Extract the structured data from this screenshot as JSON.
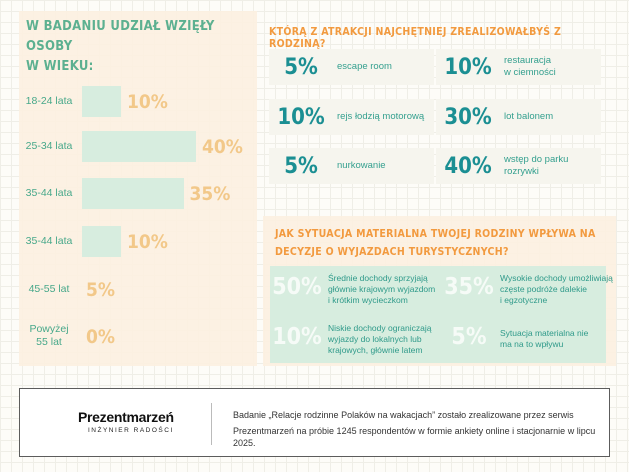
{
  "colors": {
    "accent_green": "#5cb090",
    "accent_orange": "#f29a3f",
    "pct_yellow": "#f2c889",
    "teal": "#1b8f93",
    "bar_green": "#d7eddf",
    "panel_peach": "#fcefe0"
  },
  "left": {
    "title_line1": "W BADANIU UDZIAŁ WZIĘŁY OSOBY",
    "title_line2": "W WIEKU:"
  },
  "chart_data": [
    {
      "type": "bar",
      "title": "W BADANIU UDZIAŁ WZIĘŁY OSOBY W WIEKU:",
      "categories": [
        "18-24 lata",
        "25-34 lata",
        "35-44 lata",
        "35-44 lata",
        "45-55 lat",
        "Powyżej 55 lat"
      ],
      "category_lines": [
        [
          "18-24 lata"
        ],
        [
          "25-34 lata"
        ],
        [
          "35-44 lata"
        ],
        [
          "35-44 lata"
        ],
        [
          "45-55 lat"
        ],
        [
          "Powyżej",
          "55 lat"
        ]
      ],
      "values": [
        10,
        40,
        35,
        10,
        5,
        0
      ],
      "value_labels": [
        "10%",
        "40%",
        "35%",
        "10%",
        "5%",
        "0%"
      ],
      "orientation": "horizontal",
      "unit": "%",
      "xlim": [
        0,
        40
      ]
    }
  ],
  "attractions": {
    "title": "KTÓRĄ Z ATRAKCJI NAJCHĘTNIEJ ZREALIZOWAŁBYŚ Z RODZINĄ?",
    "items": [
      {
        "pct": "5%",
        "label_lines": [
          "escape room"
        ]
      },
      {
        "pct": "10%",
        "label_lines": [
          "restauracja",
          "w ciemności"
        ]
      },
      {
        "pct": "10%",
        "label_lines": [
          "rejs łodzią motorową"
        ]
      },
      {
        "pct": "30%",
        "label_lines": [
          "lot balonem"
        ]
      },
      {
        "pct": "5%",
        "label_lines": [
          "nurkowanie"
        ]
      },
      {
        "pct": "40%",
        "label_lines": [
          "wstęp do parku",
          "rozrywki"
        ]
      }
    ]
  },
  "material": {
    "title_line1": "JAK SYTUACJA MATERIALNA TWOJEJ RODZINY WPŁYWA NA",
    "title_line2": "DECYZJE O WYJAZDACH TURYSTYCZNYCH?",
    "items": [
      {
        "pct": "50%",
        "label_lines": [
          "Średnie dochody sprzyjają",
          "głównie krajowym wyjazdom",
          "i krótkim wycieczkom"
        ]
      },
      {
        "pct": "35%",
        "label_lines": [
          "Wysokie dochody umożliwiają",
          "częste podróże dalekie",
          "i egzotyczne"
        ]
      },
      {
        "pct": "10%",
        "label_lines": [
          "Niskie dochody ograniczają",
          "wyjazdy do lokalnych lub",
          "krajowych, głównie latem"
        ]
      },
      {
        "pct": "5%",
        "label_lines": [
          "Sytuacja materialna nie",
          "ma na to wpływu"
        ]
      }
    ]
  },
  "footer": {
    "logo": "Prezentmarzeń",
    "logo_sub": "INŻYNIER RADOŚCI",
    "line1": "Badanie „Relacje rodzinne Polaków na wakacjach” zostało zrealizowane przez serwis",
    "line2": "Prezentmarzeń na próbie 1245 respondentów w formie ankiety online i stacjonarnie w lipcu 2025."
  }
}
